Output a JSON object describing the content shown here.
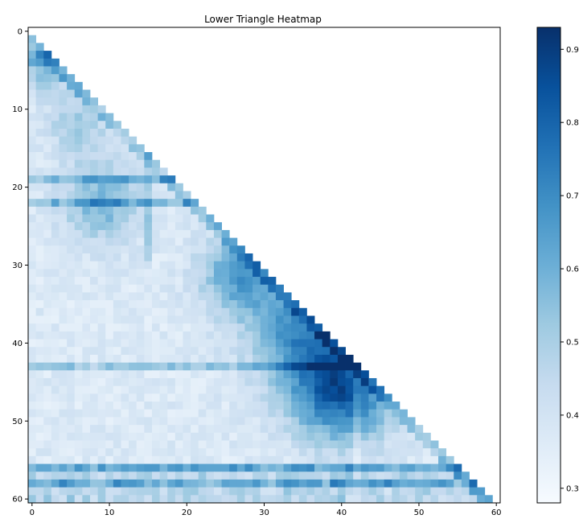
{
  "chart_data": {
    "type": "heatmap",
    "title": "Lower Triangle Heatmap",
    "n": 61,
    "x_ticks": [
      0,
      10,
      20,
      30,
      40,
      50,
      60
    ],
    "y_ticks": [
      0,
      10,
      20,
      30,
      40,
      50,
      60
    ],
    "colorbar": {
      "colormap": "Blues",
      "vmin": 0.28,
      "vmax": 0.93,
      "ticks": [
        0.3,
        0.4,
        0.5,
        0.6,
        0.7,
        0.8,
        0.9
      ]
    },
    "grid": false
  }
}
